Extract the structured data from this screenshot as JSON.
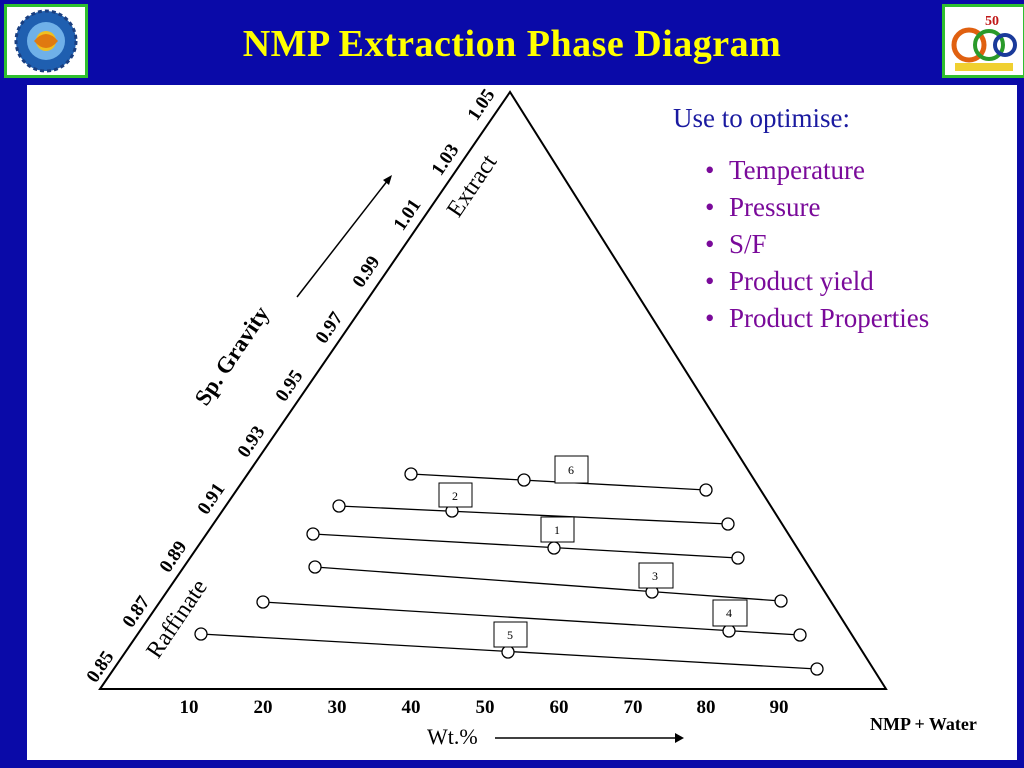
{
  "title": "NMP Extraction  Phase Diagram",
  "logos": {
    "left_icon": "csir-india-emblem",
    "right_icon": "golden-jubilee-emblem"
  },
  "diagram": {
    "gravity_ticks": [
      "0.85",
      "0.87",
      "0.89",
      "0.91",
      "0.93",
      "0.95",
      "0.97",
      "0.99",
      "1.01",
      "1.03",
      "1.05"
    ],
    "wt_ticks": [
      "10",
      "20",
      "30",
      "40",
      "50",
      "60",
      "70",
      "80",
      "90"
    ],
    "sp_gravity_label": "Sp. Gravity",
    "extract_label": "Extract",
    "raffinate_label": "Raffinate",
    "wt_label": "Wt.%",
    "corner_label": "NMP + Water",
    "tie_lines": [
      {
        "id": "6"
      },
      {
        "id": "2"
      },
      {
        "id": "1"
      },
      {
        "id": "3"
      },
      {
        "id": "4"
      },
      {
        "id": "5"
      }
    ]
  },
  "optimise": {
    "heading": "Use to optimise:",
    "items": [
      "Temperature",
      "Pressure",
      "S/F",
      "Product yield",
      "Product Properties"
    ]
  }
}
